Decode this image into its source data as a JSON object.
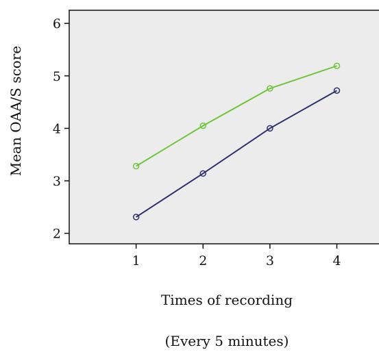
{
  "chart_data": {
    "type": "line",
    "title": "",
    "xlabel": "Times of recording",
    "xlabel_note": "(Every 5 minutes)",
    "ylabel": "Mean OAA/S score",
    "x": [
      1,
      2,
      3,
      4
    ],
    "xlim": [
      0.0,
      4.63
    ],
    "ylim": [
      1.8,
      6.25
    ],
    "xticks": [
      "1",
      "2",
      "3",
      "4"
    ],
    "yticks": [
      "2",
      "3",
      "4",
      "5",
      "6"
    ],
    "grid": false,
    "legend": "none",
    "plot_background": "#ececec",
    "series": [
      {
        "values": [
          3.28,
          4.05,
          4.76,
          5.19
        ],
        "color": "#6fc53a"
      },
      {
        "values": [
          2.31,
          3.14,
          4.0,
          4.72
        ],
        "color": "#2b2f6e"
      }
    ]
  }
}
